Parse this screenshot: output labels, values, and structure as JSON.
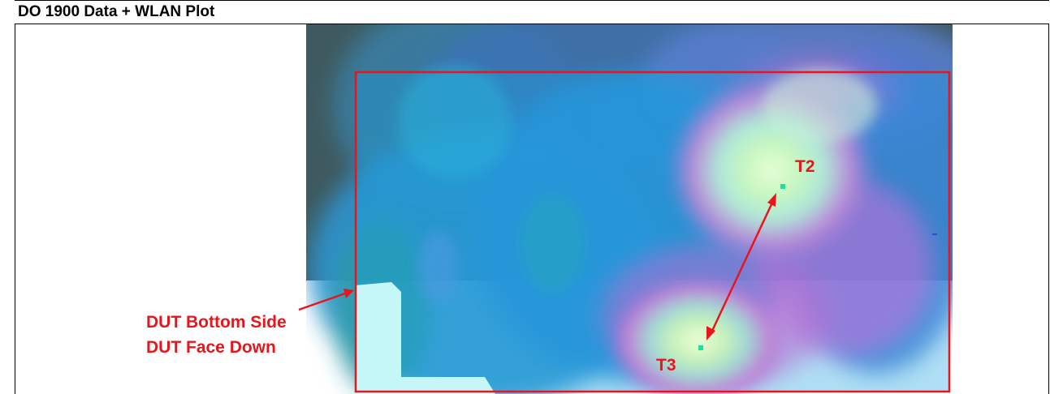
{
  "document": {
    "title": "DO 1900 Data + WLAN Plot"
  },
  "plot": {
    "markers": [
      {
        "id": "t2",
        "label": "T2"
      },
      {
        "id": "t3",
        "label": "T3"
      }
    ],
    "annotation": {
      "line1": "DUT Bottom Side",
      "line2": "DUT Face Down"
    },
    "colors": {
      "outline": "#e8161c",
      "label": "#e8161c",
      "marker": "#18e0a0",
      "background_dark": "#3f5a5f",
      "field_blue": "#2e9ad6"
    }
  }
}
